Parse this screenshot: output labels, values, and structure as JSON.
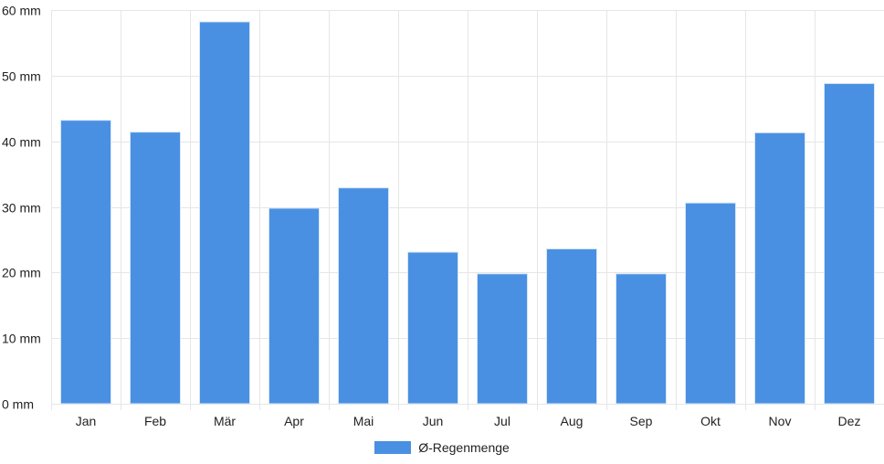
{
  "colors": {
    "bar": "#4a90e2",
    "bar_border": "#d6e6f8",
    "grid": "#e6e6e6",
    "text": "#222222"
  },
  "chart_data": {
    "type": "bar",
    "categories": [
      "Jan",
      "Feb",
      "Mär",
      "Apr",
      "Mai",
      "Jun",
      "Jul",
      "Aug",
      "Sep",
      "Okt",
      "Nov",
      "Dez"
    ],
    "series": [
      {
        "name": "Ø-Regenmenge",
        "values": [
          43.2,
          41.4,
          58.2,
          29.8,
          32.9,
          23.1,
          19.8,
          23.6,
          19.8,
          30.6,
          41.3,
          48.8
        ]
      }
    ],
    "title": "",
    "xlabel": "",
    "ylabel": "",
    "ylim": [
      0,
      60
    ],
    "yticks": [
      0,
      10,
      20,
      30,
      40,
      50,
      60
    ],
    "ytick_unit": "mm",
    "grid": true,
    "legend_position": "bottom-center"
  }
}
